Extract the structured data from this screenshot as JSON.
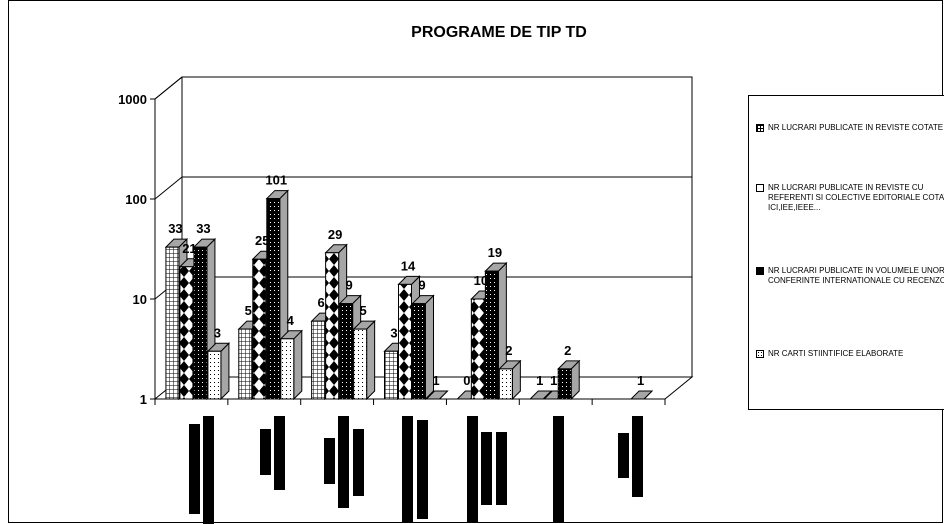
{
  "chart_data": {
    "type": "bar",
    "title": "PROGRAME DE TIP TD",
    "scale": "log",
    "ylim": [
      1,
      1000
    ],
    "y_ticks": [
      "1",
      "10",
      "100",
      "1000"
    ],
    "categories": [
      "",
      "",
      "",
      "",
      "",
      "",
      ""
    ],
    "series": [
      {
        "name": "NR LUCRARI PUBLICATE IN REVISTE COTATE ISI",
        "values": [
          33,
          5,
          6,
          3,
          0,
          1,
          null
        ],
        "pattern": "grid"
      },
      {
        "name": "NR LUCRARI PUBLICATE IN REVISTE CU REFERENTI SI COLECTIVE EDITORIALE COTATE ICI,IEE,IEEE...",
        "values": [
          21,
          25,
          29,
          14,
          10,
          1,
          null
        ],
        "pattern": "diamond"
      },
      {
        "name": "NR LUCRARI PUBLICATE IN VOLUMELE UNOR CONFERINTE INTERNATIONALE CU RECENZORI",
        "values": [
          33,
          101,
          9,
          9,
          19,
          2,
          1
        ],
        "pattern": "dark-dots"
      },
      {
        "name": "NR CARTI STIINTIFICE ELABORATE",
        "values": [
          3,
          4,
          5,
          1,
          2,
          null,
          null
        ],
        "pattern": "light-dots"
      }
    ],
    "data_labels": [
      [
        "33",
        "21",
        "33",
        "3"
      ],
      [
        "5",
        "25",
        "101",
        "4"
      ],
      [
        "6",
        "29",
        "9",
        "5"
      ],
      [
        "3",
        "14",
        "9",
        "1"
      ],
      [
        "0",
        "10",
        "19",
        "2"
      ],
      [
        "1",
        "1",
        "2",
        ""
      ],
      [
        "",
        "",
        "1",
        ""
      ]
    ],
    "grid": true,
    "legend_position": "right",
    "colors": {
      "background": "#ffffff",
      "line": "#000000",
      "side": "#a6a6a6"
    }
  }
}
